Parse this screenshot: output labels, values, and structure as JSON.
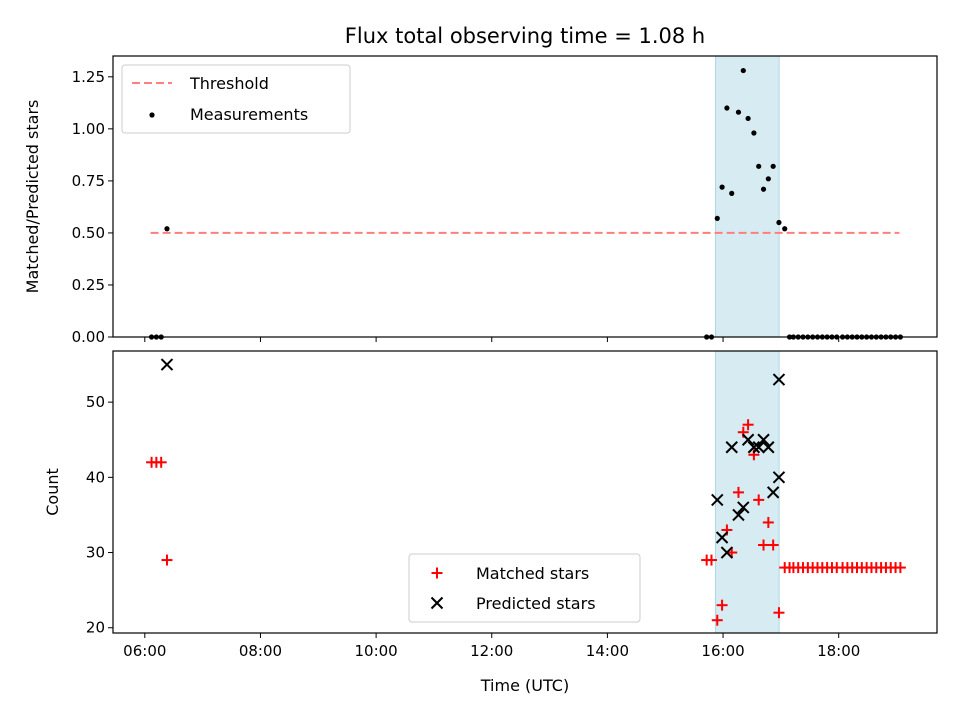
{
  "chart_data": [
    {
      "type": "scatter",
      "title": "Flux total observing time = 1.08 h",
      "ylabel": "Matched/Predicted stars",
      "xlim_hours": [
        5.45,
        19.7
      ],
      "ylim": [
        0,
        1.35
      ],
      "yticks": [
        "0.00",
        "0.25",
        "0.50",
        "0.75",
        "1.00",
        "1.25"
      ],
      "yticks_values": [
        0,
        0.25,
        0.5,
        0.75,
        1.0,
        1.25
      ],
      "legend": "top-left",
      "highlight_span_hours": [
        15.87,
        16.97
      ],
      "threshold": {
        "name": "Threshold",
        "y": 0.5,
        "x_range_hours": [
          6.1,
          19.05
        ],
        "color": "#ff7f7f"
      },
      "series": [
        {
          "name": "Measurements",
          "color": "#000000",
          "x": [
            "06:07",
            "06:12",
            "06:17",
            "06:23",
            "15:43",
            "15:48",
            "15:54",
            "15:59",
            "16:04",
            "16:09",
            "16:16",
            "16:21",
            "16:26",
            "16:32",
            "16:37",
            "16:42",
            "16:47",
            "16:52",
            "16:58",
            "17:04",
            "17:09",
            "17:13",
            "17:18",
            "17:23",
            "17:28",
            "17:33",
            "17:38",
            "17:43",
            "17:48",
            "17:53",
            "17:58",
            "18:04",
            "18:09",
            "18:14",
            "18:19",
            "18:24",
            "18:29",
            "18:34",
            "18:39",
            "18:44",
            "18:49",
            "18:54",
            "18:59",
            "19:04"
          ],
          "y": [
            0,
            0,
            0,
            0.52,
            0,
            0,
            0.57,
            0.72,
            1.1,
            0.69,
            1.08,
            1.28,
            1.05,
            0.98,
            0.82,
            0.71,
            0.76,
            0.82,
            0.55,
            0.52,
            0,
            0,
            0,
            0,
            0,
            0,
            0,
            0,
            0,
            0,
            0,
            0,
            0,
            0,
            0,
            0,
            0,
            0,
            0,
            0,
            0,
            0,
            0,
            0
          ]
        }
      ]
    },
    {
      "type": "scatter",
      "xlabel": "Time (UTC)",
      "ylabel": "Count",
      "xlim_hours": [
        5.45,
        19.7
      ],
      "ylim": [
        19.3,
        56.8
      ],
      "yticks": [
        "20",
        "30",
        "40",
        "50"
      ],
      "yticks_values": [
        20,
        30,
        40,
        50
      ],
      "xticks": [
        "06:00",
        "08:00",
        "10:00",
        "12:00",
        "14:00",
        "16:00",
        "18:00"
      ],
      "xticks_hours": [
        6,
        8,
        10,
        12,
        14,
        16,
        18
      ],
      "legend": "lower-center",
      "highlight_span_hours": [
        15.87,
        16.97
      ],
      "series": [
        {
          "name": "Matched stars",
          "color": "#ff0000",
          "marker": "plus",
          "x": [
            "06:07",
            "06:12",
            "06:17",
            "06:23",
            "15:43",
            "15:48",
            "15:54",
            "15:59",
            "16:04",
            "16:09",
            "16:16",
            "16:21",
            "16:26",
            "16:32",
            "16:37",
            "16:42",
            "16:47",
            "16:52",
            "16:58",
            "17:04",
            "17:09",
            "17:13",
            "17:18",
            "17:23",
            "17:28",
            "17:33",
            "17:38",
            "17:43",
            "17:48",
            "17:53",
            "17:58",
            "18:04",
            "18:09",
            "18:14",
            "18:19",
            "18:24",
            "18:29",
            "18:34",
            "18:39",
            "18:44",
            "18:49",
            "18:54",
            "18:59",
            "19:04"
          ],
          "y": [
            42,
            42,
            42,
            29,
            29,
            29,
            21,
            23,
            33,
            30,
            38,
            46,
            47,
            43,
            37,
            31,
            34,
            31,
            22,
            28,
            28,
            28,
            28,
            28,
            28,
            28,
            28,
            28,
            28,
            28,
            28,
            28,
            28,
            28,
            28,
            28,
            28,
            28,
            28,
            28,
            28,
            28,
            28,
            28
          ]
        },
        {
          "name": "Predicted stars",
          "color": "#000000",
          "marker": "x",
          "x": [
            "06:23",
            "15:54",
            "15:59",
            "16:04",
            "16:09",
            "16:16",
            "16:21",
            "16:26",
            "16:32",
            "16:37",
            "16:42",
            "16:47",
            "16:52",
            "16:58"
          ],
          "y": [
            55,
            37,
            32,
            30,
            44,
            35,
            36,
            45,
            44,
            44,
            45,
            44,
            38,
            40
          ]
        },
        {
          "name": "",
          "color": "#000000",
          "marker": "x",
          "x": [
            "16:58"
          ],
          "y": [
            53
          ]
        }
      ]
    }
  ]
}
